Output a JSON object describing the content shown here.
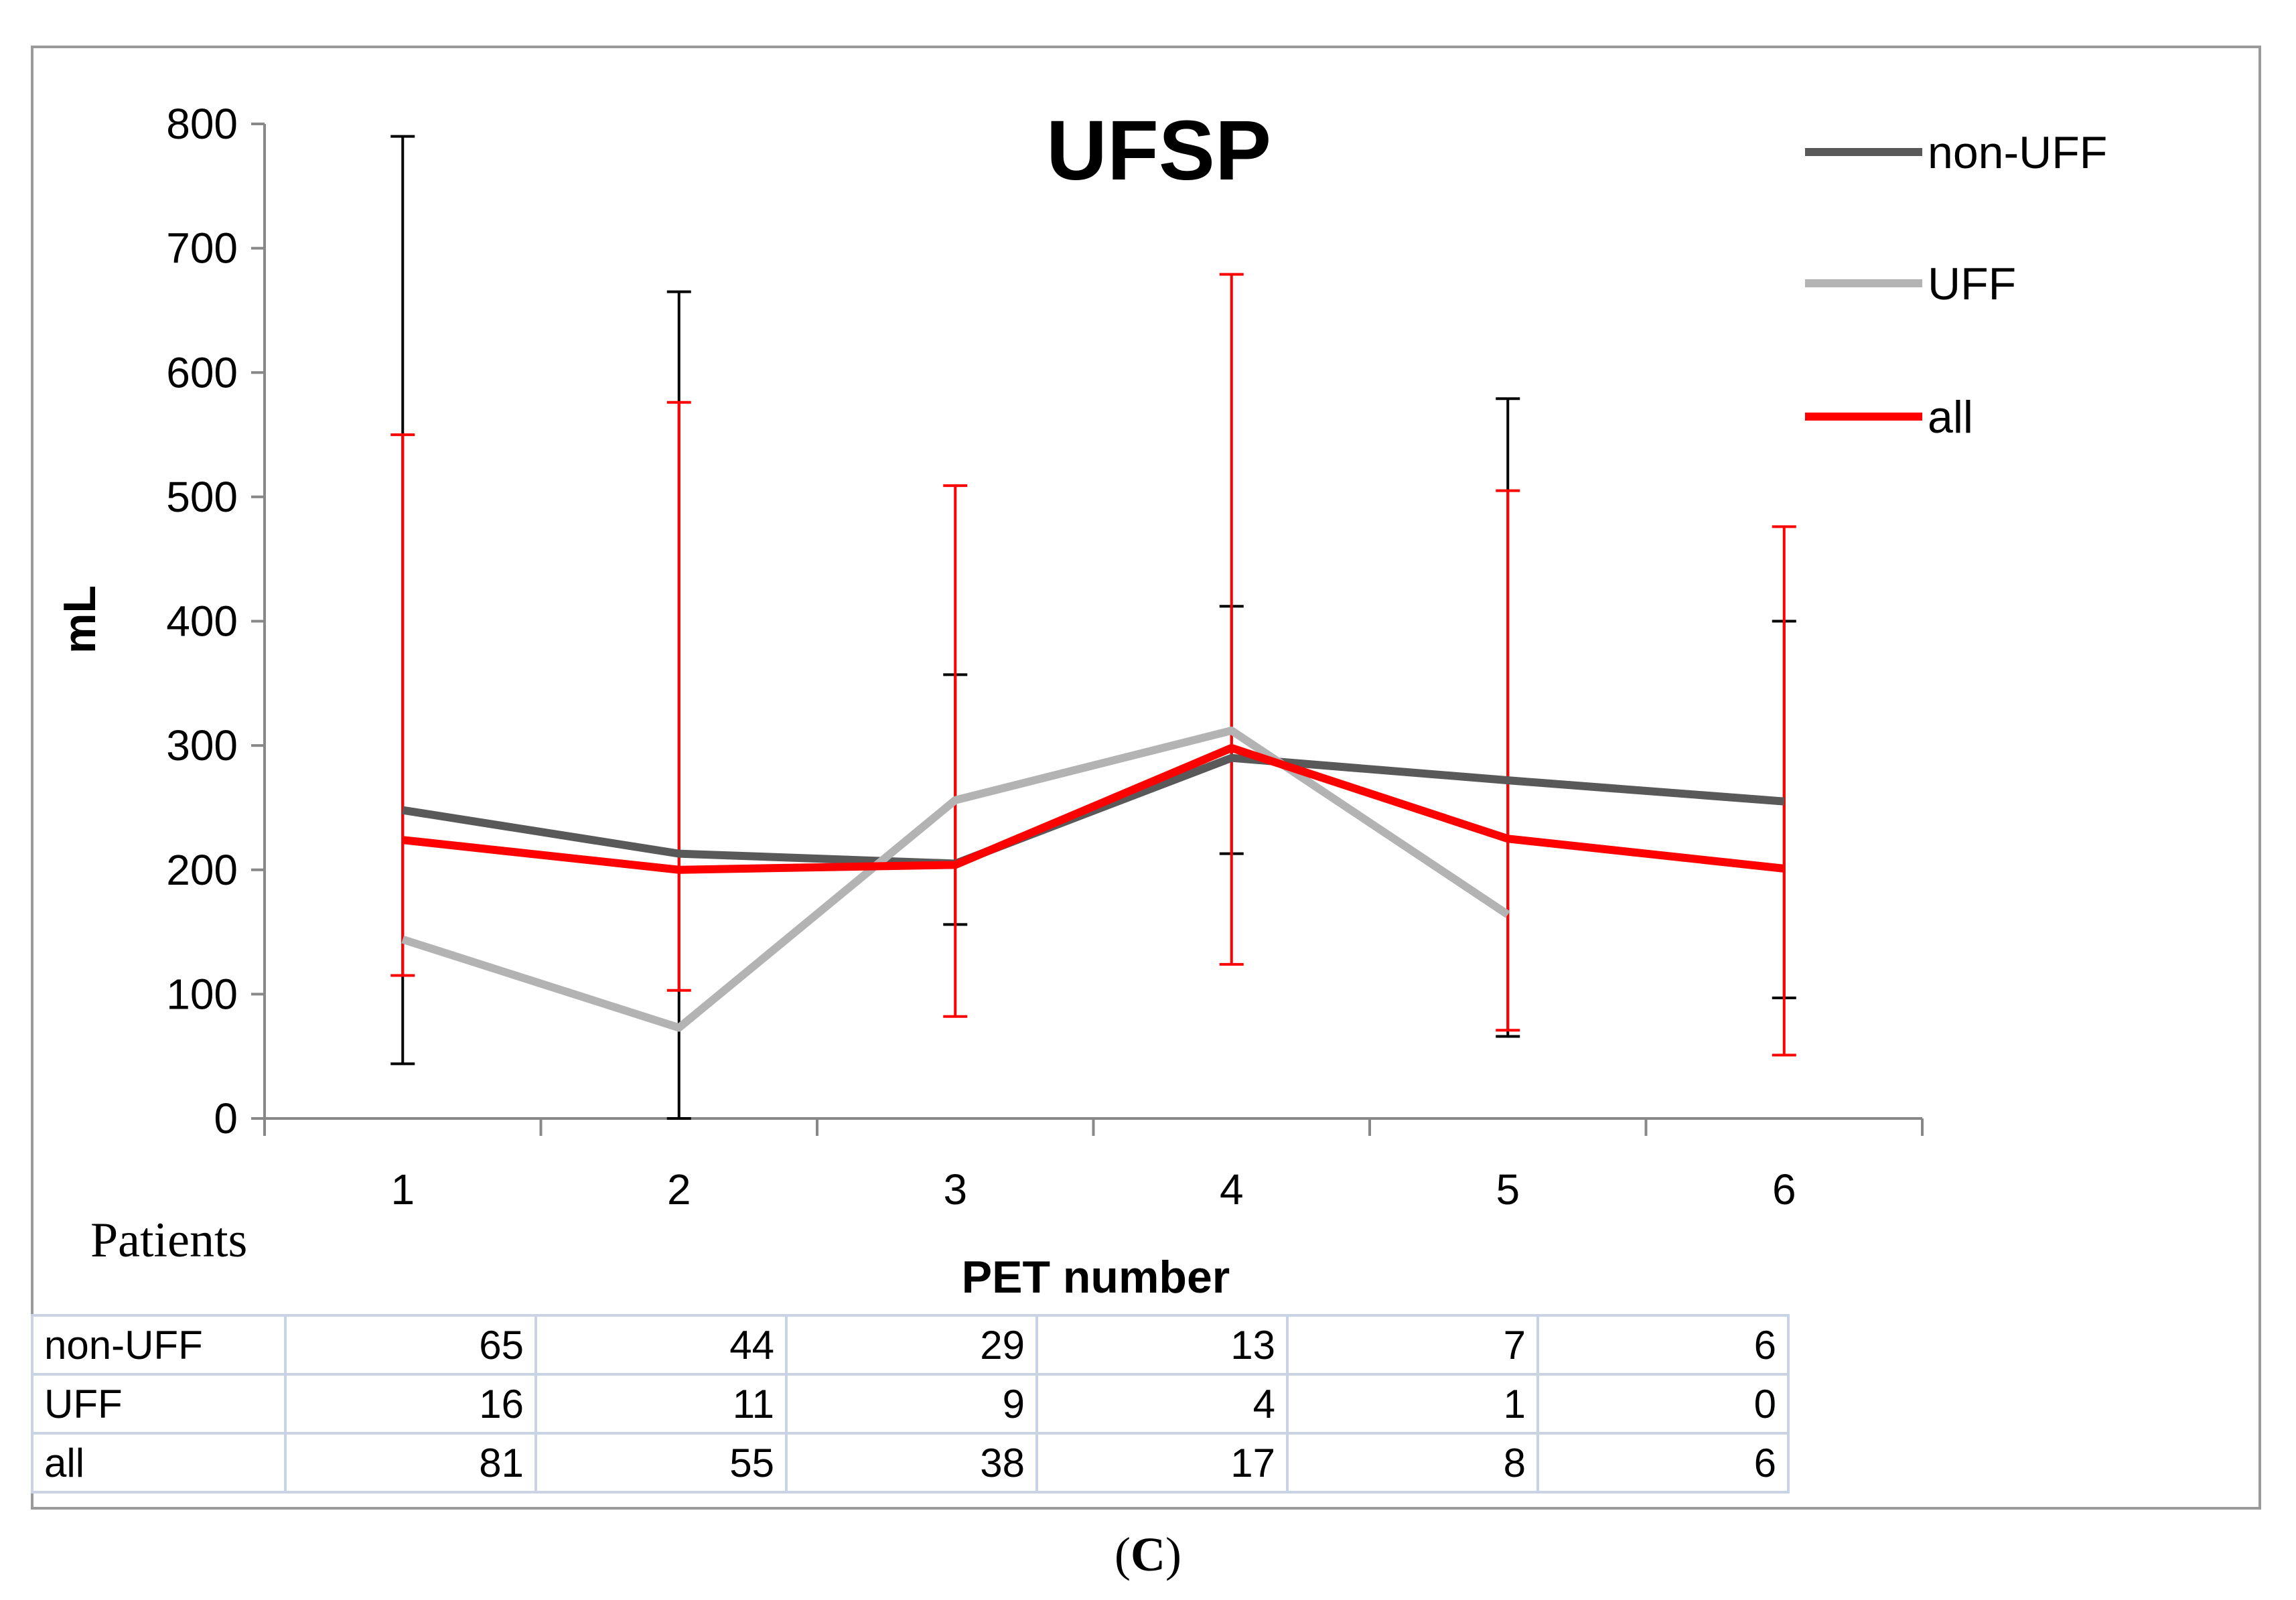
{
  "chart_data": {
    "type": "line",
    "title": "UFSP",
    "xlabel": "PET number",
    "ylabel": "mL",
    "ylim": [
      0,
      800
    ],
    "yticks": [
      0,
      100,
      200,
      300,
      400,
      500,
      600,
      700,
      800
    ],
    "categories": [
      "1",
      "2",
      "3",
      "4",
      "5",
      "6"
    ],
    "legend_position": "top-right",
    "series": [
      {
        "name": "non-UFF",
        "color": "#595959",
        "errorbar_color": "#000000",
        "values": [
          248,
          213,
          205,
          290,
          272,
          255
        ],
        "error_low": [
          44,
          0,
          156,
          213,
          66,
          97
        ],
        "error_high": [
          790,
          665,
          357,
          412,
          579,
          400
        ]
      },
      {
        "name": "UFF",
        "color": "#b3b3b3",
        "values": [
          144,
          73,
          256,
          312,
          164,
          null
        ]
      },
      {
        "name": "all",
        "color": "#ff0000",
        "errorbar_color": "#ff0000",
        "values": [
          224,
          200,
          204,
          298,
          225,
          201
        ],
        "error_low": [
          115,
          103,
          82,
          124,
          71,
          51
        ],
        "error_high": [
          550,
          576,
          509,
          679,
          505,
          476
        ]
      }
    ]
  },
  "table": {
    "heading": "Patients",
    "rows": [
      {
        "label": "non-UFF",
        "values": [
          "65",
          "44",
          "29",
          "13",
          "7",
          "6"
        ]
      },
      {
        "label": "UFF",
        "values": [
          "16",
          "11",
          "9",
          "4",
          "1",
          "0"
        ]
      },
      {
        "label": "all",
        "values": [
          "81",
          "55",
          "38",
          "17",
          "8",
          "6"
        ]
      }
    ]
  },
  "caption": {
    "open": "(",
    "letter": "C",
    "close": ")"
  }
}
